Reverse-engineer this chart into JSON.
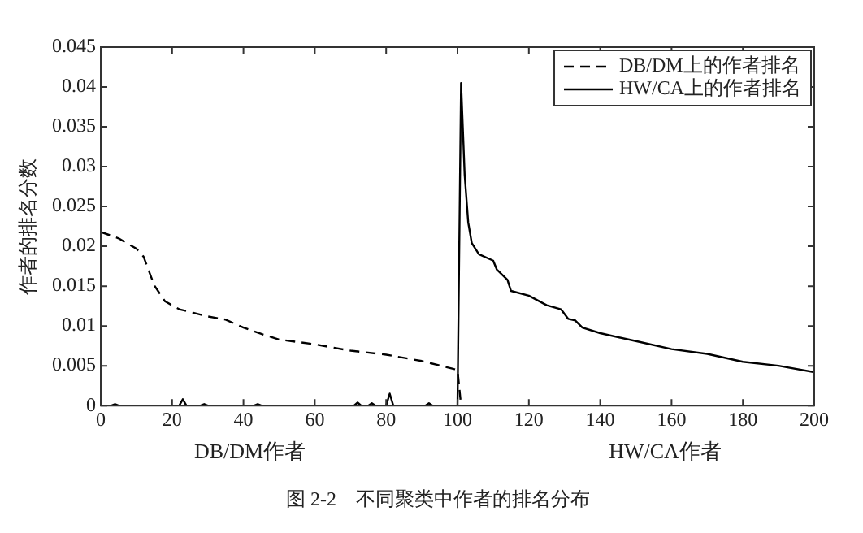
{
  "chart_data": {
    "type": "line",
    "title": "图 2-2　不同聚类中作者的排名分布",
    "xlabel": "DB/DM作者",
    "ylabel": "作者的排名分数",
    "annotations": [
      "HW/CA作者"
    ],
    "xlim": [
      0,
      200
    ],
    "xticks": [
      0,
      20,
      40,
      60,
      80,
      100,
      120,
      140,
      160,
      180,
      200
    ],
    "ylim": [
      0,
      0.045
    ],
    "yticks": [
      0,
      0.005,
      0.01,
      0.015,
      0.02,
      0.025,
      0.03,
      0.035,
      0.04,
      0.045
    ],
    "grid": false,
    "legend": "top right",
    "marker": "none",
    "series": [
      {
        "name": "DB/DM上的作者排名",
        "color": "#000000",
        "line_style": "dashed",
        "x": [
          0,
          5,
          10,
          12,
          15,
          18,
          22,
          30,
          35,
          40,
          45,
          50,
          60,
          70,
          80,
          90,
          99,
          100,
          101,
          200
        ],
        "values": [
          0.0218,
          0.021,
          0.0197,
          0.0187,
          0.0151,
          0.0131,
          0.0121,
          0.0112,
          0.0108,
          0.0098,
          0.009,
          0.0083,
          0.0077,
          0.0069,
          0.0064,
          0.0056,
          0.0046,
          0.0045,
          0,
          0
        ]
      },
      {
        "name": "HW/CA上的作者排名",
        "color": "#000000",
        "line_style": "solid",
        "x": [
          0,
          3,
          4,
          5,
          22,
          23,
          24,
          28,
          29,
          30,
          43,
          44,
          45,
          71,
          72,
          73,
          75,
          76,
          77,
          80,
          81,
          82,
          91,
          92,
          93,
          100,
          101,
          102,
          103,
          104,
          106,
          110,
          111,
          114,
          115,
          120,
          125,
          129,
          131,
          133,
          135,
          140,
          150,
          160,
          170,
          180,
          190,
          200
        ],
        "values": [
          0,
          0,
          0.0002,
          0,
          0,
          0.0008,
          0,
          0,
          0.0002,
          0,
          0,
          0.0002,
          0,
          0,
          0.0004,
          0,
          0,
          0.0003,
          0,
          0,
          0.0015,
          0,
          0,
          0.0003,
          0,
          0,
          0.0405,
          0.029,
          0.023,
          0.0204,
          0.019,
          0.0182,
          0.0171,
          0.0158,
          0.0144,
          0.0138,
          0.0126,
          0.0121,
          0.0109,
          0.0107,
          0.0098,
          0.0091,
          0.0081,
          0.0071,
          0.0065,
          0.0055,
          0.005,
          0.0042
        ]
      }
    ]
  }
}
